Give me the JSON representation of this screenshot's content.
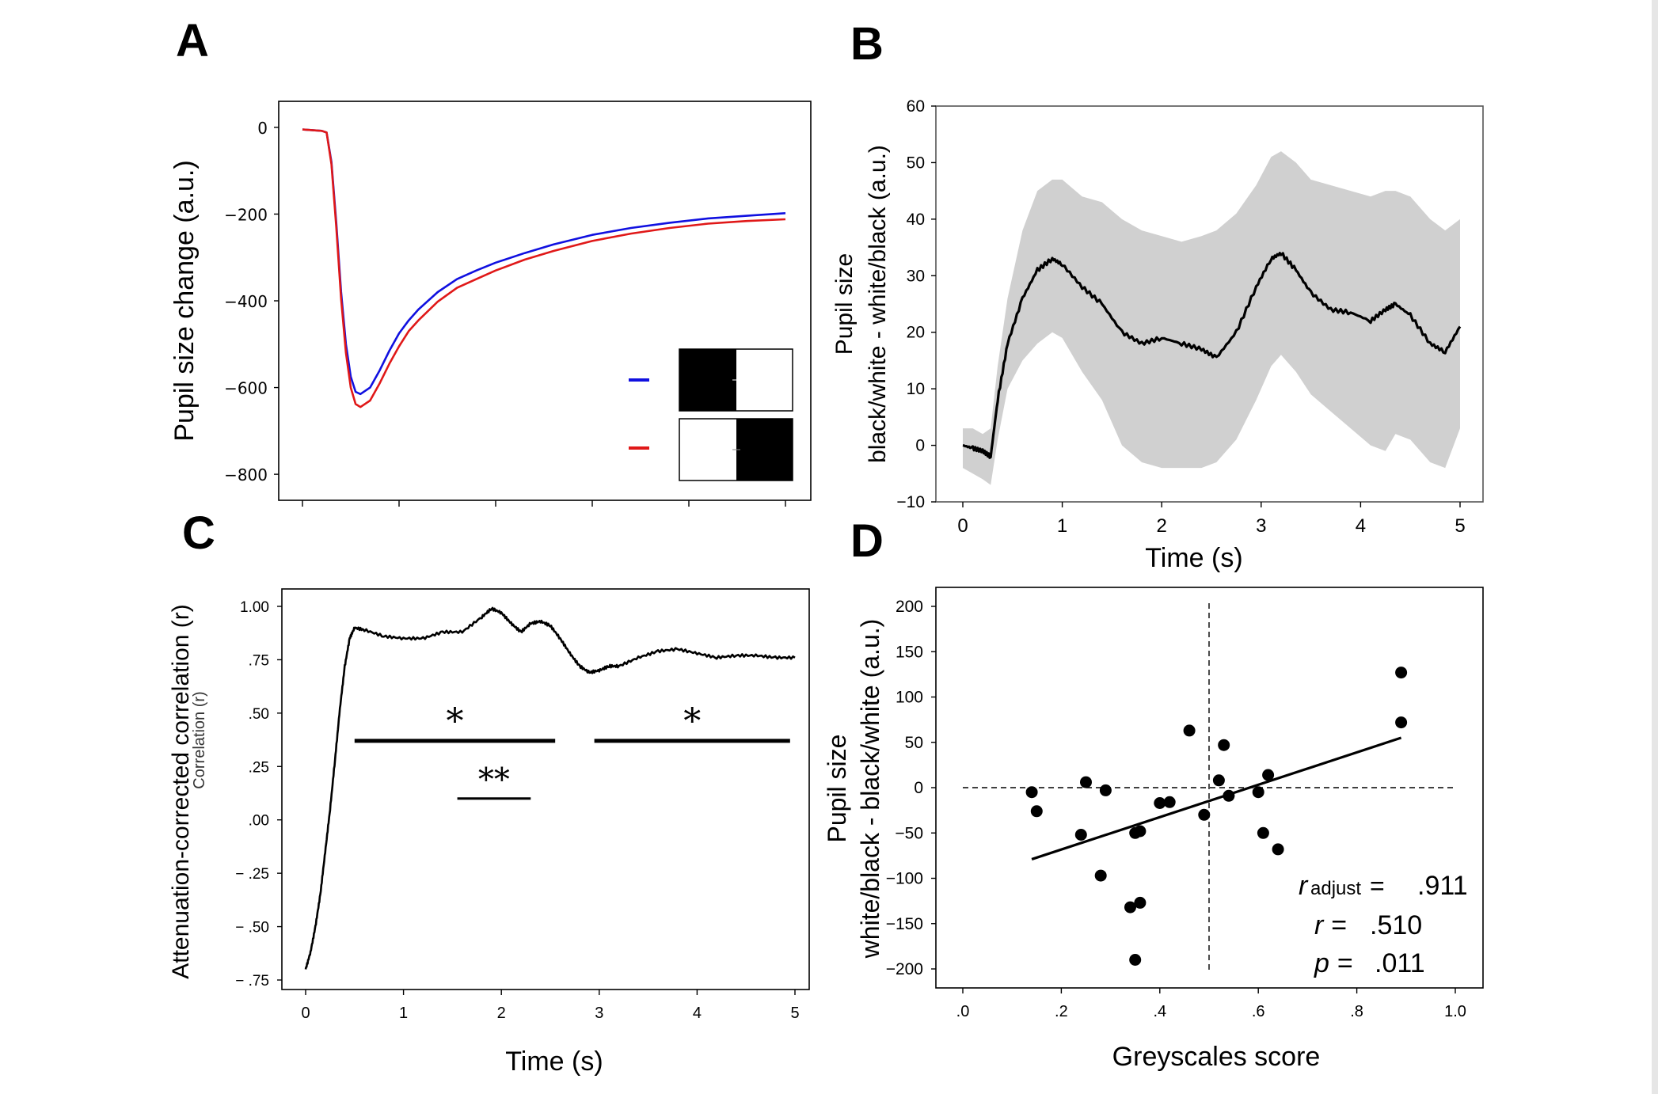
{
  "panels": {
    "A": {
      "letter": "A"
    },
    "B": {
      "letter": "B"
    },
    "C": {
      "letter": "C"
    },
    "D": {
      "letter": "D"
    }
  },
  "chart_data": [
    {
      "panel": "A",
      "type": "line",
      "xlabel": "",
      "ylabel": "Pupil size change (a.u.)",
      "xlim": [
        0,
        5
      ],
      "ylim": [
        -860,
        60
      ],
      "yticks": [
        0,
        -200,
        -400,
        -600,
        -800
      ],
      "ytick_labels": [
        "0",
        "−200",
        "−400",
        "−600",
        "−800"
      ],
      "xticks": [
        0,
        1,
        2,
        3,
        4,
        5
      ],
      "series": [
        {
          "color": "#1010e0",
          "x": [
            0,
            0.2,
            0.25,
            0.3,
            0.35,
            0.4,
            0.45,
            0.5,
            0.55,
            0.6,
            0.7,
            0.8,
            0.9,
            1.0,
            1.1,
            1.2,
            1.4,
            1.6,
            1.8,
            2.0,
            2.3,
            2.6,
            3.0,
            3.4,
            3.8,
            4.2,
            4.6,
            5.0
          ],
          "y": [
            -5,
            -8,
            -12,
            -80,
            -220,
            -380,
            -500,
            -575,
            -610,
            -615,
            -600,
            -560,
            -515,
            -475,
            -445,
            -420,
            -380,
            -350,
            -330,
            -312,
            -290,
            -270,
            -248,
            -232,
            -220,
            -210,
            -204,
            -198
          ]
        },
        {
          "color": "#e01818",
          "x": [
            0,
            0.2,
            0.25,
            0.3,
            0.35,
            0.4,
            0.45,
            0.5,
            0.55,
            0.6,
            0.7,
            0.8,
            0.9,
            1.0,
            1.1,
            1.2,
            1.4,
            1.6,
            1.8,
            2.0,
            2.3,
            2.6,
            3.0,
            3.4,
            3.8,
            4.2,
            4.6,
            5.0
          ],
          "y": [
            -5,
            -8,
            -12,
            -85,
            -230,
            -395,
            -520,
            -600,
            -638,
            -645,
            -630,
            -590,
            -545,
            -505,
            -470,
            -445,
            -402,
            -370,
            -350,
            -330,
            -305,
            -285,
            -262,
            -245,
            -232,
            -222,
            -216,
            -212
          ]
        }
      ]
    },
    {
      "panel": "B",
      "type": "area",
      "xlabel": "Time (s)",
      "ylabel": "Pupil size",
      "ylabel2": "black/white - white/black (a.u.)",
      "xlim": [
        -0.1,
        5.2
      ],
      "ylim": [
        -10,
        60
      ],
      "xticks": [
        0,
        1,
        2,
        3,
        4,
        5
      ],
      "yticks": [
        -10,
        0,
        10,
        20,
        30,
        40,
        50,
        60
      ],
      "series": [
        {
          "name": "",
          "color": "#000000",
          "x": [
            0,
            0.1,
            0.2,
            0.28,
            0.35,
            0.45,
            0.6,
            0.75,
            0.9,
            1.0,
            1.2,
            1.4,
            1.6,
            1.8,
            2.0,
            2.2,
            2.4,
            2.55,
            2.75,
            2.95,
            3.1,
            3.2,
            3.35,
            3.5,
            3.7,
            3.9,
            4.1,
            4.25,
            4.35,
            4.5,
            4.7,
            4.85,
            5.0
          ],
          "y": [
            0,
            -0.5,
            -1,
            -2,
            8,
            18,
            26,
            31,
            33,
            32,
            28,
            25,
            20,
            18,
            19,
            18,
            17,
            15.5,
            20,
            28,
            33,
            34,
            31,
            27,
            24,
            23.5,
            22,
            24,
            25,
            23,
            18,
            16.5,
            21
          ],
          "band_upper": [
            3,
            3,
            2,
            3,
            14,
            26,
            38,
            45,
            47,
            47,
            44,
            43,
            40,
            38,
            37,
            36,
            37,
            38,
            41,
            46,
            51,
            52,
            50,
            47,
            46,
            45,
            44,
            45,
            45,
            44,
            40,
            38,
            40
          ],
          "band_lower": [
            -4,
            -5,
            -6,
            -7,
            1,
            10,
            15,
            18,
            20,
            19,
            13,
            8,
            0,
            -3,
            -4,
            -4,
            -4,
            -3,
            1,
            8,
            14,
            16,
            13,
            9,
            6,
            3,
            0,
            -1,
            2,
            1,
            -3,
            -4,
            3
          ]
        }
      ]
    },
    {
      "panel": "C",
      "type": "line",
      "xlabel": "Time (s)",
      "ylabel": "Attenuation-corrected correlation (r)",
      "ylabel_overlap": "Correlation (r)",
      "ylabel_r": "r",
      "xlim": [
        -0.2,
        5.0
      ],
      "ylim": [
        -0.78,
        1.03
      ],
      "xticks": [
        0,
        1,
        2,
        3,
        4,
        5
      ],
      "yticks": [
        1.0,
        0.75,
        0.5,
        0.25,
        0.0,
        -0.25,
        -0.5,
        -0.75
      ],
      "ytick_labels": [
        "1.00",
        ".75",
        ".50",
        ".25",
        ".00",
        "− .25",
        "− .50",
        "− .75"
      ],
      "series": [
        {
          "color": "#000000",
          "x": [
            0,
            0.05,
            0.1,
            0.15,
            0.2,
            0.25,
            0.3,
            0.35,
            0.4,
            0.45,
            0.5,
            0.6,
            0.8,
            1.0,
            1.2,
            1.4,
            1.6,
            1.8,
            1.9,
            2.0,
            2.1,
            2.2,
            2.3,
            2.4,
            2.5,
            2.6,
            2.7,
            2.8,
            2.9,
            3.0,
            3.1,
            3.2,
            3.4,
            3.6,
            3.8,
            4.0,
            4.2,
            4.4,
            4.6,
            4.8,
            5.0
          ],
          "y": [
            -0.7,
            -0.62,
            -0.5,
            -0.35,
            -0.15,
            0.05,
            0.28,
            0.52,
            0.72,
            0.85,
            0.9,
            0.89,
            0.86,
            0.85,
            0.85,
            0.88,
            0.88,
            0.95,
            0.99,
            0.97,
            0.92,
            0.88,
            0.92,
            0.93,
            0.91,
            0.85,
            0.78,
            0.72,
            0.69,
            0.7,
            0.72,
            0.72,
            0.76,
            0.79,
            0.8,
            0.78,
            0.76,
            0.77,
            0.77,
            0.76,
            0.76
          ]
        }
      ],
      "annotations": [
        {
          "label": "*",
          "x_start": 0.5,
          "x_end": 2.55,
          "y": 0.37
        },
        {
          "label": "*",
          "x_start": 2.95,
          "x_end": 4.95,
          "y": 0.37
        },
        {
          "label": "**",
          "x_start": 1.55,
          "x_end": 2.3,
          "y": 0.1
        }
      ]
    },
    {
      "panel": "D",
      "type": "scatter",
      "xlabel": "Greyscales score",
      "ylabel": "Pupil size",
      "ylabel2": "white/black - black/white (a.u.)",
      "xlim": [
        -0.02,
        1.02
      ],
      "ylim": [
        -220,
        222
      ],
      "xticks": [
        0,
        0.2,
        0.4,
        0.6,
        0.8,
        1.0
      ],
      "xtick_labels": [
        ".0",
        ".2",
        ".4",
        ".6",
        ".8",
        "1.0"
      ],
      "yticks": [
        200,
        150,
        100,
        50,
        0,
        -50,
        -100,
        -150,
        -200
      ],
      "ytick_labels": [
        "200",
        "150",
        "100",
        "50",
        "0",
        "−50",
        "−100",
        "−150",
        "−200"
      ],
      "points": {
        "x": [
          0.14,
          0.15,
          0.24,
          0.25,
          0.28,
          0.29,
          0.34,
          0.35,
          0.35,
          0.36,
          0.36,
          0.4,
          0.42,
          0.46,
          0.49,
          0.52,
          0.53,
          0.54,
          0.6,
          0.61,
          0.62,
          0.64,
          0.89,
          0.89
        ],
        "y": [
          -5,
          -26,
          -52,
          6,
          -97,
          -3,
          -132,
          -190,
          -50,
          -48,
          -127,
          -17,
          -16,
          63,
          -30,
          8,
          47,
          -9,
          -5,
          -50,
          14,
          -68,
          127,
          72
        ]
      },
      "fit_line": {
        "x": [
          0.14,
          0.89
        ],
        "y": [
          -79,
          55
        ]
      },
      "ref_lines": {
        "x": 0.5,
        "y": 0
      },
      "stats": {
        "r_adjust_symbol": "r",
        "r_adjust_sub": "adjust",
        "r_adjust_eq": "=",
        "r_adjust_val": ".911",
        "r_label": "r =",
        "r_val": ".510",
        "p_label": "p =",
        "p_val": ".011"
      }
    }
  ]
}
